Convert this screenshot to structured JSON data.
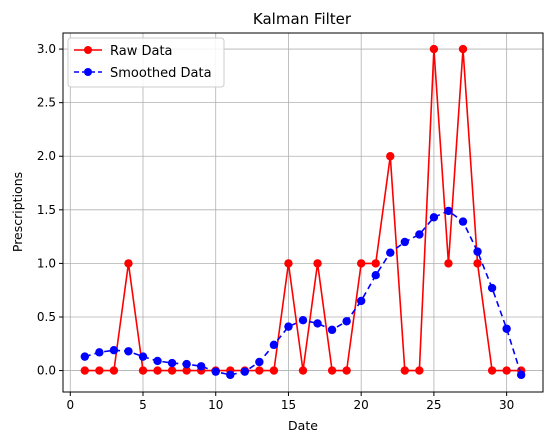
{
  "chart_data": {
    "type": "line",
    "title": "Kalman Filter",
    "xlabel": "Date",
    "ylabel": "Prescriptions",
    "xlim": [
      -0.5,
      32.5
    ],
    "ylim": [
      -0.2,
      3.15
    ],
    "xticks": [
      0,
      5,
      10,
      15,
      20,
      25,
      30
    ],
    "yticks": [
      0.0,
      0.5,
      1.0,
      1.5,
      2.0,
      2.5,
      3.0
    ],
    "xtick_labels": [
      "0",
      "5",
      "10",
      "15",
      "20",
      "25",
      "30"
    ],
    "ytick_labels": [
      "0.0",
      "0.5",
      "1.0",
      "1.5",
      "2.0",
      "2.5",
      "3.0"
    ],
    "grid": true,
    "legend_position": "top-left",
    "x": [
      1,
      2,
      3,
      4,
      5,
      6,
      7,
      8,
      9,
      10,
      11,
      12,
      13,
      14,
      15,
      16,
      17,
      18,
      19,
      20,
      21,
      22,
      23,
      24,
      25,
      26,
      27,
      28,
      29,
      30,
      31
    ],
    "series": [
      {
        "name": "Raw Data",
        "color": "#ff0000",
        "linestyle": "solid",
        "marker": "circle",
        "values": [
          0,
          0,
          0,
          1,
          0,
          0,
          0,
          0,
          0,
          0,
          0,
          0,
          0,
          0,
          1,
          0,
          1,
          0,
          0,
          1,
          1,
          2,
          0,
          0,
          3,
          1,
          3,
          1,
          0,
          0,
          0
        ]
      },
      {
        "name": "Smoothed Data",
        "color": "#0000ff",
        "linestyle": "dashed",
        "marker": "circle",
        "values": [
          0.13,
          0.17,
          0.19,
          0.18,
          0.13,
          0.09,
          0.07,
          0.06,
          0.04,
          -0.01,
          -0.04,
          -0.01,
          0.08,
          0.24,
          0.41,
          0.47,
          0.44,
          0.38,
          0.46,
          0.65,
          0.89,
          1.1,
          1.2,
          1.27,
          1.43,
          1.49,
          1.39,
          1.11,
          0.77,
          0.39,
          -0.04
        ]
      }
    ]
  }
}
